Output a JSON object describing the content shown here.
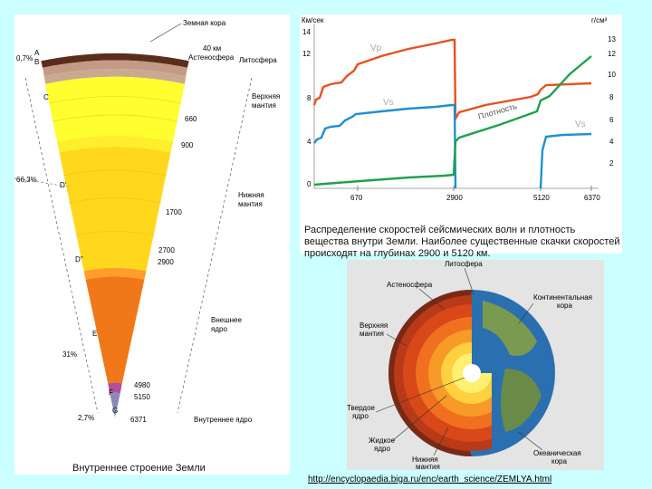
{
  "earth_section": {
    "title": "Внутреннее строение Земли",
    "top_labels": {
      "crust": "Земная кора",
      "km40": "40 км",
      "asthenosphere": "Астеносфера",
      "lithosphere": "Литосфера"
    },
    "side_labels": {
      "upper_mantle": [
        "Верхняя",
        "мантия"
      ],
      "lower_mantle": [
        "Нижняя",
        "мантия"
      ],
      "outer_core": [
        "Внешнее",
        "ядро"
      ],
      "inner_core": "Внутреннее ядро"
    },
    "percents": {
      "p07": "0,7%",
      "p66": "66,3%",
      "p31": "31%",
      "p27": "2,7%"
    },
    "letters": {
      "A": "A",
      "B": "B",
      "C": "C",
      "D1": "D'",
      "D2": "D''",
      "E": "E",
      "F": "F",
      "G": "G"
    },
    "depths": {
      "d660": "660",
      "d900": "900",
      "d1700": "1700",
      "d2700": "2700",
      "d2900": "2900",
      "d4980": "4980",
      "d5150": "5150",
      "d6371": "6371"
    }
  },
  "chart_data": {
    "type": "line",
    "left_axis_label": "Км/сек",
    "right_axis_label": "г/см³",
    "left_ticks": [
      "14",
      "12",
      "8",
      "4",
      "0"
    ],
    "right_ticks": [
      "13",
      "12",
      "10",
      "8",
      "6",
      "4",
      "2"
    ],
    "x_ticks": [
      "670",
      "2900",
      "5120",
      "6370"
    ],
    "series": [
      {
        "name": "Vp",
        "color": "#e8501e"
      },
      {
        "name": "Vs",
        "color": "#1e90d0"
      },
      {
        "name": "Плотность",
        "color": "#20a050"
      }
    ],
    "colors": {
      "vp": "#e8501e",
      "vs": "#1e90d0",
      "density": "#20a050"
    }
  },
  "chart_caption": "Распределение скоростей сейсмических волн и плотность вещества внутри Земли. Наиболее существенные скачки скоростей происходят на глубинах 2900 и 5120 км.",
  "globe": {
    "lithosphere": "Литосфера",
    "asthenosphere": "Астеносфера",
    "continental_crust": [
      "Континентальная",
      "кора"
    ],
    "upper_mantle": [
      "Верхняя",
      "мантия"
    ],
    "solid_core": [
      "Твердое",
      "ядро"
    ],
    "liquid_core": [
      "Жидкое",
      "ядро"
    ],
    "lower_mantle": [
      "Нижняя",
      "мантия"
    ],
    "oceanic_crust": [
      "Океаническая",
      "кора"
    ]
  },
  "source_url": "http://encyclopaedia.biga.ru/enc/earth_science/ZEMLYA.html"
}
